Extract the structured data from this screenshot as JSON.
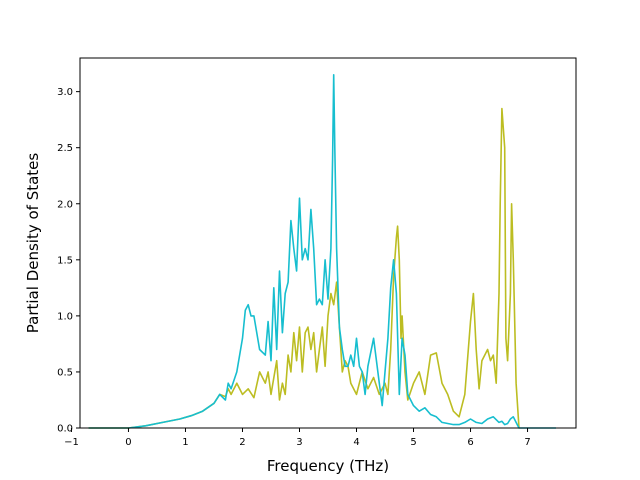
{
  "chart_data": {
    "type": "line",
    "xlabel": "Frequency (THz)",
    "ylabel": "Partial Density of States",
    "xlim": [
      -0.85,
      7.85
    ],
    "ylim": [
      0.0,
      3.3
    ],
    "xticks": [
      -1,
      0,
      1,
      2,
      3,
      4,
      5,
      6,
      7
    ],
    "yticks": [
      0.0,
      0.5,
      1.0,
      1.5,
      2.0,
      2.5,
      3.0
    ],
    "xtick_labels": [
      "−1",
      "0",
      "1",
      "2",
      "3",
      "4",
      "5",
      "6",
      "7"
    ],
    "ytick_labels": [
      "0.0",
      "0.5",
      "1.0",
      "1.5",
      "2.0",
      "2.5",
      "3.0"
    ],
    "grid": false,
    "series": [
      {
        "color": "#bcbd22",
        "x": [
          -0.7,
          0.0,
          0.3,
          0.6,
          0.9,
          1.1,
          1.3,
          1.5,
          1.6,
          1.7,
          1.75,
          1.8,
          1.9,
          2.0,
          2.1,
          2.2,
          2.3,
          2.4,
          2.45,
          2.5,
          2.6,
          2.65,
          2.7,
          2.75,
          2.8,
          2.85,
          2.9,
          2.95,
          3.0,
          3.05,
          3.1,
          3.15,
          3.2,
          3.25,
          3.3,
          3.35,
          3.4,
          3.45,
          3.5,
          3.55,
          3.6,
          3.65,
          3.7,
          3.75,
          3.8,
          3.85,
          3.9,
          4.0,
          4.1,
          4.2,
          4.3,
          4.4,
          4.5,
          4.55,
          4.6,
          4.65,
          4.7,
          4.72,
          4.75,
          4.78,
          4.8,
          4.85,
          4.9,
          5.0,
          5.1,
          5.2,
          5.3,
          5.4,
          5.5,
          5.6,
          5.7,
          5.8,
          5.9,
          6.0,
          6.05,
          6.1,
          6.15,
          6.2,
          6.3,
          6.35,
          6.4,
          6.45,
          6.5,
          6.52,
          6.55,
          6.6,
          6.62,
          6.65,
          6.7,
          6.72,
          6.75,
          6.8,
          6.85
        ],
        "y": [
          0.0,
          0.0,
          0.02,
          0.05,
          0.08,
          0.11,
          0.15,
          0.22,
          0.3,
          0.28,
          0.35,
          0.3,
          0.4,
          0.3,
          0.35,
          0.27,
          0.5,
          0.4,
          0.5,
          0.3,
          0.6,
          0.25,
          0.4,
          0.3,
          0.65,
          0.5,
          0.85,
          0.6,
          0.9,
          0.5,
          0.85,
          0.9,
          0.7,
          0.85,
          0.5,
          0.7,
          0.9,
          0.55,
          1.0,
          1.2,
          1.1,
          1.3,
          0.9,
          0.5,
          0.6,
          0.55,
          0.4,
          0.3,
          0.5,
          0.35,
          0.45,
          0.3,
          0.4,
          0.3,
          0.7,
          1.35,
          1.7,
          1.8,
          1.5,
          0.8,
          1.0,
          0.5,
          0.25,
          0.4,
          0.5,
          0.3,
          0.65,
          0.67,
          0.4,
          0.3,
          0.15,
          0.1,
          0.3,
          0.95,
          1.2,
          0.7,
          0.35,
          0.6,
          0.7,
          0.6,
          0.65,
          0.4,
          1.2,
          2.0,
          2.85,
          2.5,
          0.8,
          0.6,
          1.2,
          2.0,
          1.5,
          0.4,
          0.0
        ]
      },
      {
        "color": "#17becf",
        "x": [
          -0.7,
          0.0,
          0.3,
          0.6,
          0.9,
          1.1,
          1.3,
          1.5,
          1.6,
          1.7,
          1.75,
          1.8,
          1.9,
          2.0,
          2.05,
          2.1,
          2.15,
          2.2,
          2.3,
          2.4,
          2.45,
          2.5,
          2.55,
          2.6,
          2.65,
          2.7,
          2.75,
          2.8,
          2.85,
          2.9,
          2.95,
          3.0,
          3.05,
          3.1,
          3.15,
          3.2,
          3.25,
          3.3,
          3.35,
          3.4,
          3.45,
          3.5,
          3.55,
          3.58,
          3.6,
          3.62,
          3.65,
          3.7,
          3.75,
          3.8,
          3.85,
          3.9,
          3.95,
          4.0,
          4.05,
          4.1,
          4.15,
          4.2,
          4.3,
          4.4,
          4.45,
          4.5,
          4.55,
          4.6,
          4.65,
          4.7,
          4.75,
          4.8,
          4.85,
          4.9,
          5.0,
          5.1,
          5.2,
          5.3,
          5.4,
          5.5,
          5.6,
          5.7,
          5.8,
          5.9,
          6.0,
          6.1,
          6.2,
          6.3,
          6.4,
          6.5,
          6.55,
          6.6,
          6.65,
          6.7,
          6.75,
          6.8,
          6.85,
          7.0,
          7.5
        ],
        "y": [
          0.0,
          0.0,
          0.02,
          0.05,
          0.08,
          0.11,
          0.15,
          0.22,
          0.3,
          0.25,
          0.4,
          0.35,
          0.5,
          0.8,
          1.05,
          1.1,
          1.0,
          1.0,
          0.7,
          0.65,
          0.95,
          0.6,
          1.25,
          0.7,
          1.4,
          0.85,
          1.2,
          1.3,
          1.85,
          1.6,
          1.4,
          2.05,
          1.5,
          1.6,
          1.5,
          1.95,
          1.6,
          1.1,
          1.15,
          1.1,
          1.5,
          1.15,
          1.6,
          2.4,
          3.15,
          2.5,
          1.6,
          0.9,
          0.7,
          0.55,
          0.55,
          0.65,
          0.55,
          0.8,
          0.55,
          0.5,
          0.3,
          0.55,
          0.8,
          0.4,
          0.2,
          0.5,
          0.8,
          1.25,
          1.5,
          1.2,
          0.3,
          0.8,
          0.65,
          0.3,
          0.2,
          0.15,
          0.18,
          0.12,
          0.1,
          0.05,
          0.04,
          0.03,
          0.03,
          0.05,
          0.08,
          0.05,
          0.04,
          0.08,
          0.1,
          0.05,
          0.06,
          0.03,
          0.04,
          0.08,
          0.1,
          0.05,
          0.0,
          0.0,
          0.0
        ]
      }
    ]
  }
}
